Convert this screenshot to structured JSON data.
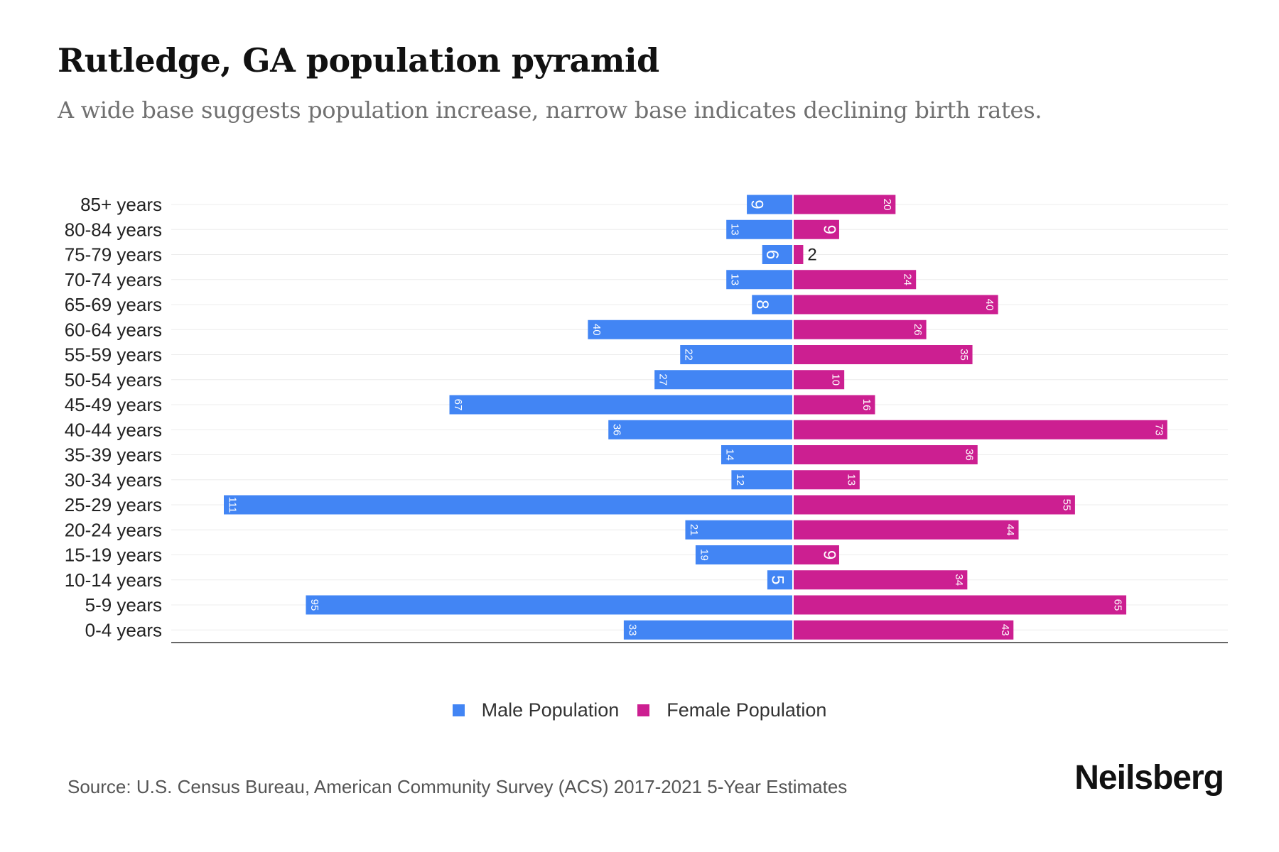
{
  "header": {
    "title": "Rutledge, GA population pyramid",
    "subtitle": "A wide base suggests population increase, narrow base indicates declining birth rates."
  },
  "chart_data": {
    "type": "bar",
    "orientation": "horizontal-pyramid",
    "title": "Rutledge, GA population pyramid",
    "subtitle": "A wide base suggests population increase, narrow base indicates declining birth rates.",
    "categories": [
      "85+ years",
      "80-84 years",
      "75-79 years",
      "70-74 years",
      "65-69 years",
      "60-64 years",
      "55-59 years",
      "50-54 years",
      "45-49 years",
      "40-44 years",
      "35-39 years",
      "30-34 years",
      "25-29 years",
      "20-24 years",
      "15-19 years",
      "10-14 years",
      "5-9 years",
      "0-4 years"
    ],
    "series": [
      {
        "name": "Male Population",
        "color": "#4285f4",
        "side": "left",
        "values": [
          9,
          13,
          6,
          13,
          8,
          40,
          22,
          27,
          67,
          36,
          14,
          12,
          111,
          21,
          19,
          5,
          95,
          33
        ]
      },
      {
        "name": "Female Population",
        "color": "#cc1f91",
        "side": "right",
        "values": [
          20,
          9,
          2,
          24,
          40,
          26,
          35,
          10,
          16,
          73,
          36,
          13,
          55,
          44,
          9,
          34,
          65,
          43
        ]
      }
    ],
    "xlabel": "",
    "ylabel": "",
    "xlim": [
      -111,
      111
    ],
    "grid": true,
    "legend": "bottom-center"
  },
  "legend": {
    "items": [
      {
        "label": "Male Population",
        "color": "#4285f4"
      },
      {
        "label": "Female Population",
        "color": "#cc1f91"
      }
    ]
  },
  "footer": {
    "source": "Source: U.S. Census Bureau, American Community Survey (ACS) 2017-2021 5-Year Estimates",
    "brand": "Neilsberg"
  }
}
